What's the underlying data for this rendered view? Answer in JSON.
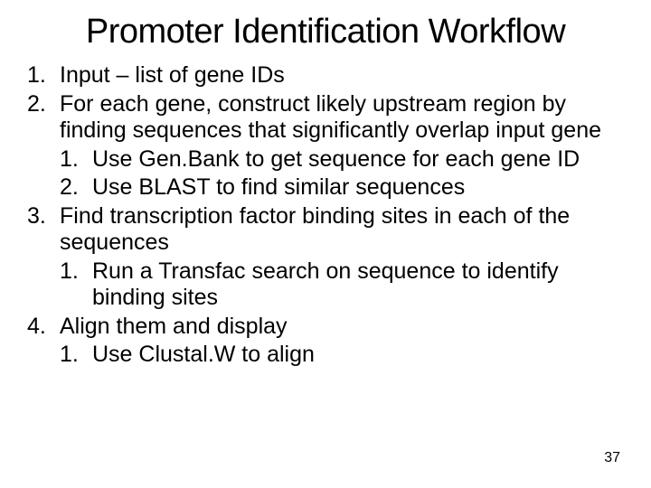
{
  "title": "Promoter Identification Workflow",
  "items": [
    {
      "num": "1.",
      "text": "Input – list of gene IDs",
      "children": []
    },
    {
      "num": "2.",
      "text": "For each gene, construct likely upstream region by finding sequences that significantly overlap input gene",
      "children": [
        {
          "num": "1.",
          "text": "Use Gen.Bank to get sequence for each gene ID"
        },
        {
          "num": "2.",
          "text": "Use BLAST to find similar sequences"
        }
      ]
    },
    {
      "num": "3.",
      "text": "Find transcription factor binding sites in each of the sequences",
      "children": [
        {
          "num": "1.",
          "text": "Run a Transfac search on sequence to identify binding sites"
        }
      ]
    },
    {
      "num": "4.",
      "text": "Align them and display",
      "children": [
        {
          "num": "1.",
          "text": "Use Clustal.W to align"
        }
      ]
    }
  ],
  "page_number": "37",
  "colors": {
    "background": "#ffffff",
    "text": "#000000"
  },
  "typography": {
    "title_fontsize": 38,
    "body_fontsize": 25,
    "page_number_fontsize": 16
  }
}
